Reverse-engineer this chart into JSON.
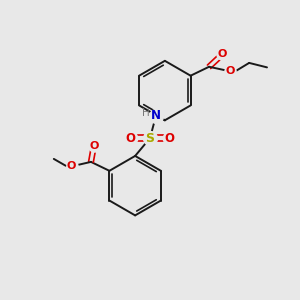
{
  "background_color": "#e8e8e8",
  "bond_color": "#1a1a1a",
  "oxygen_color": "#dd0000",
  "nitrogen_color": "#0000cc",
  "sulfur_color": "#aaaa00",
  "hydrogen_color": "#777777",
  "figsize": [
    3.0,
    3.0
  ],
  "dpi": 100,
  "xlim": [
    0,
    10
  ],
  "ylim": [
    0,
    10
  ]
}
